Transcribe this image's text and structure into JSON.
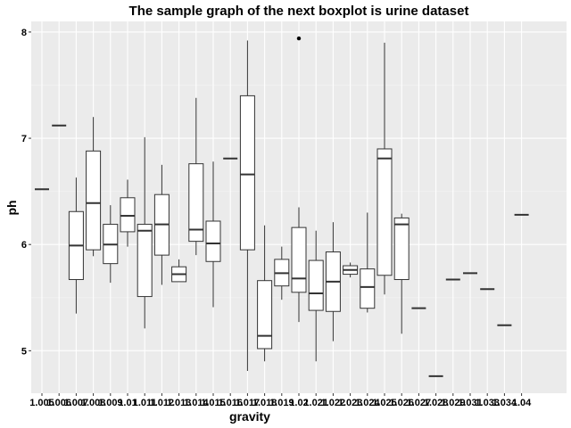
{
  "chart_data": {
    "type": "boxplot",
    "title": "The sample graph of the next boxplot is urine dataset",
    "xlabel": "gravity",
    "ylabel": "ph",
    "ylim": [
      4.6,
      8.1
    ],
    "yticks": [
      5,
      6,
      7,
      8
    ],
    "grid": true,
    "legend": "none",
    "colors": {
      "panel": "#ebebeb",
      "grid_major": "#ffffff",
      "box_fill": "#ffffff",
      "box_line": "#333333"
    },
    "categories": [
      "1.005",
      "1.006",
      "1.007",
      "1.008",
      "1.009",
      "1.01",
      "1.011",
      "1.012",
      "1.013",
      "1.014",
      "1.015",
      "1.016",
      "1.017",
      "1.018",
      "1.019",
      "1.02",
      "1.021",
      "1.022",
      "1.023",
      "1.024",
      "1.025",
      "1.026",
      "1.027",
      "1.028",
      "1.029",
      "1.031",
      "1.033",
      "1.034",
      "1.04"
    ],
    "tick_labels": [
      "1.005",
      "1.006",
      "1.007",
      "1.008",
      "1.009",
      "1.01",
      "1.011",
      "1.012",
      "1.013",
      "1.014",
      "1.015",
      "1.016",
      "1.017",
      "1.018",
      "1.019",
      "1.02",
      "1.021",
      "1.022",
      "1.023",
      "1.024",
      "1.025",
      "1.026",
      "1.027",
      "1.028",
      "1.029",
      "1.031",
      "1.033",
      "1.034",
      "1.04"
    ],
    "boxes": [
      {
        "min": 6.52,
        "q1": 6.52,
        "median": 6.52,
        "q3": 6.52,
        "max": 6.52,
        "outliers": []
      },
      {
        "min": 7.12,
        "q1": 7.12,
        "median": 7.12,
        "q3": 7.12,
        "max": 7.12,
        "outliers": []
      },
      {
        "min": 5.35,
        "q1": 5.67,
        "median": 5.99,
        "q3": 6.31,
        "max": 6.63,
        "outliers": []
      },
      {
        "min": 5.89,
        "q1": 5.95,
        "median": 6.39,
        "q3": 6.88,
        "max": 7.2,
        "outliers": []
      },
      {
        "min": 5.64,
        "q1": 5.82,
        "median": 6.0,
        "q3": 6.19,
        "max": 6.37,
        "outliers": []
      },
      {
        "min": 5.98,
        "q1": 6.12,
        "median": 6.27,
        "q3": 6.44,
        "max": 6.61,
        "outliers": []
      },
      {
        "min": 5.21,
        "q1": 5.51,
        "median": 6.13,
        "q3": 6.19,
        "max": 7.01,
        "outliers": []
      },
      {
        "min": 5.62,
        "q1": 5.9,
        "median": 6.19,
        "q3": 6.47,
        "max": 6.75,
        "outliers": []
      },
      {
        "min": 5.65,
        "q1": 5.65,
        "median": 5.72,
        "q3": 5.79,
        "max": 5.86,
        "outliers": []
      },
      {
        "min": 5.9,
        "q1": 6.03,
        "median": 6.14,
        "q3": 6.76,
        "max": 7.38,
        "outliers": []
      },
      {
        "min": 5.41,
        "q1": 5.84,
        "median": 6.01,
        "q3": 6.22,
        "max": 6.78,
        "outliers": []
      },
      {
        "min": 6.81,
        "q1": 6.81,
        "median": 6.81,
        "q3": 6.81,
        "max": 6.81,
        "outliers": []
      },
      {
        "min": 4.81,
        "q1": 5.95,
        "median": 6.66,
        "q3": 7.4,
        "max": 7.92,
        "outliers": []
      },
      {
        "min": 4.9,
        "q1": 5.02,
        "median": 5.14,
        "q3": 5.66,
        "max": 6.18,
        "outliers": []
      },
      {
        "min": 5.48,
        "q1": 5.61,
        "median": 5.73,
        "q3": 5.86,
        "max": 5.98,
        "outliers": []
      },
      {
        "min": 5.27,
        "q1": 5.55,
        "median": 5.68,
        "q3": 6.16,
        "max": 6.35,
        "outliers": [
          7.94
        ]
      },
      {
        "min": 4.9,
        "q1": 5.38,
        "median": 5.54,
        "q3": 5.85,
        "max": 6.13,
        "outliers": []
      },
      {
        "min": 5.09,
        "q1": 5.37,
        "median": 5.65,
        "q3": 5.93,
        "max": 6.21,
        "outliers": []
      },
      {
        "min": 5.69,
        "q1": 5.72,
        "median": 5.76,
        "q3": 5.8,
        "max": 5.83,
        "outliers": []
      },
      {
        "min": 5.36,
        "q1": 5.4,
        "median": 5.6,
        "q3": 5.77,
        "max": 6.3,
        "outliers": []
      },
      {
        "min": 5.53,
        "q1": 5.71,
        "median": 6.81,
        "q3": 6.9,
        "max": 7.9,
        "outliers": []
      },
      {
        "min": 5.16,
        "q1": 5.67,
        "median": 6.19,
        "q3": 6.25,
        "max": 6.29,
        "outliers": []
      },
      {
        "min": 5.4,
        "q1": 5.4,
        "median": 5.4,
        "q3": 5.4,
        "max": 5.4,
        "outliers": []
      },
      {
        "min": 4.76,
        "q1": 4.76,
        "median": 4.76,
        "q3": 4.76,
        "max": 4.76,
        "outliers": []
      },
      {
        "min": 5.67,
        "q1": 5.67,
        "median": 5.67,
        "q3": 5.67,
        "max": 5.67,
        "outliers": []
      },
      {
        "min": 5.73,
        "q1": 5.73,
        "median": 5.73,
        "q3": 5.73,
        "max": 5.73,
        "outliers": []
      },
      {
        "min": 5.58,
        "q1": 5.58,
        "median": 5.58,
        "q3": 5.58,
        "max": 5.58,
        "outliers": []
      },
      {
        "min": 5.24,
        "q1": 5.24,
        "median": 5.24,
        "q3": 5.24,
        "max": 5.24,
        "outliers": []
      },
      {
        "min": 6.28,
        "q1": 6.28,
        "median": 6.28,
        "q3": 6.28,
        "max": 6.28,
        "outliers": []
      }
    ]
  }
}
